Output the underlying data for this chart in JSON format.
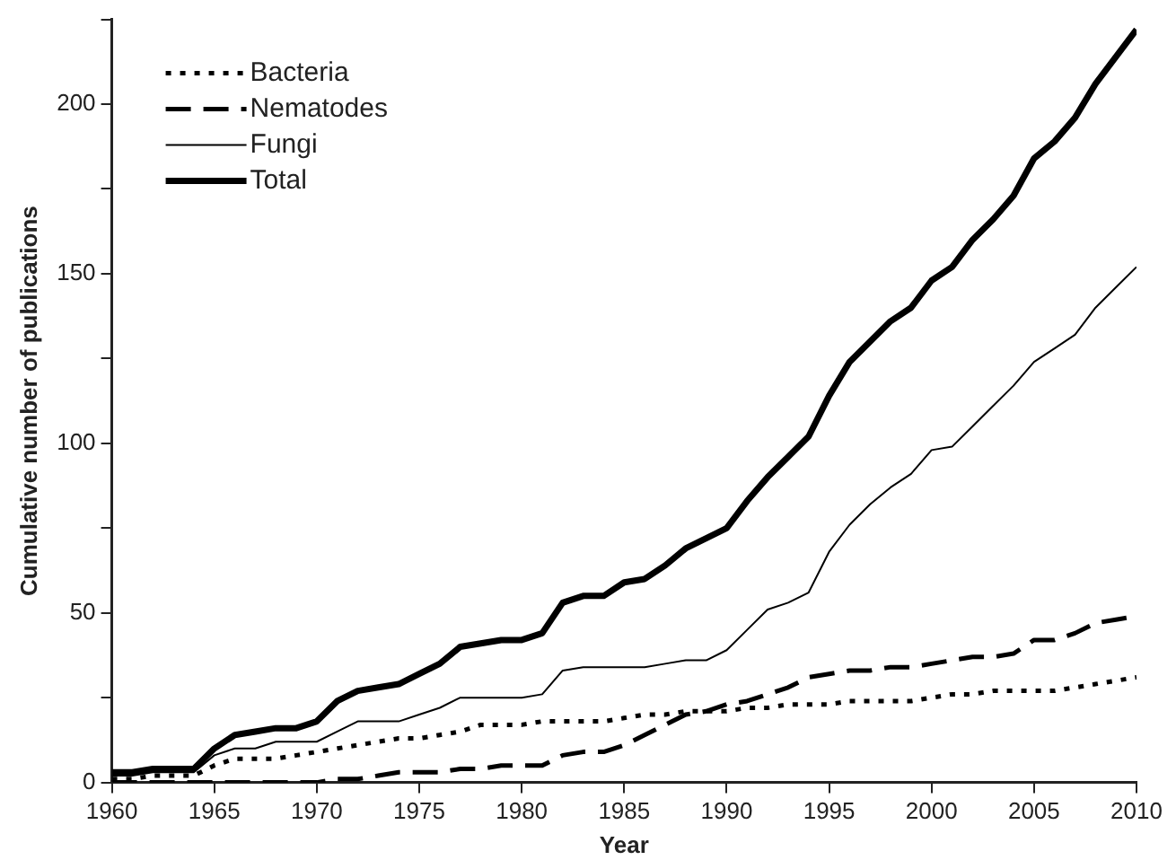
{
  "chart_data": {
    "type": "line",
    "xlabel": "Year",
    "ylabel": "Cumulative number of publications",
    "x": [
      1960,
      1961,
      1962,
      1963,
      1964,
      1965,
      1966,
      1967,
      1968,
      1969,
      1970,
      1971,
      1972,
      1973,
      1974,
      1975,
      1976,
      1977,
      1978,
      1979,
      1980,
      1981,
      1982,
      1983,
      1984,
      1985,
      1986,
      1987,
      1988,
      1989,
      1990,
      1991,
      1992,
      1993,
      1994,
      1995,
      1996,
      1997,
      1998,
      1999,
      2000,
      2001,
      2002,
      2003,
      2004,
      2005,
      2006,
      2007,
      2008,
      2009,
      2010
    ],
    "series": [
      {
        "name": "Bacteria",
        "color": "#000000",
        "line_style": "dotted",
        "values": [
          1,
          1,
          2,
          2,
          2,
          5,
          7,
          7,
          7,
          8,
          9,
          10,
          11,
          12,
          13,
          13,
          14,
          15,
          17,
          17,
          17,
          18,
          18,
          18,
          18,
          19,
          20,
          20,
          21,
          21,
          21,
          22,
          22,
          23,
          23,
          23,
          24,
          24,
          24,
          24,
          25,
          26,
          26,
          27,
          27,
          27,
          27,
          28,
          29,
          30,
          31
        ]
      },
      {
        "name": "Nematodes",
        "color": "#000000",
        "line_style": "dashed",
        "values": [
          0,
          0,
          0,
          0,
          0,
          0,
          0,
          0,
          0,
          0,
          0,
          1,
          1,
          2,
          3,
          3,
          3,
          4,
          4,
          5,
          5,
          5,
          8,
          9,
          9,
          11,
          14,
          17,
          20,
          21,
          23,
          24,
          26,
          28,
          31,
          32,
          33,
          33,
          34,
          34,
          35,
          36,
          37,
          37,
          38,
          42,
          42,
          44,
          47,
          48,
          49
        ]
      },
      {
        "name": "Fungi",
        "color": "#000000",
        "line_style": "solid",
        "values": [
          2,
          2,
          3,
          3,
          3,
          8,
          10,
          10,
          12,
          12,
          12,
          15,
          18,
          18,
          18,
          20,
          22,
          25,
          25,
          25,
          25,
          26,
          33,
          34,
          34,
          34,
          34,
          35,
          36,
          36,
          39,
          45,
          51,
          53,
          56,
          68,
          76,
          82,
          87,
          91,
          98,
          99,
          105,
          111,
          117,
          124,
          128,
          132,
          140,
          146,
          152
        ]
      },
      {
        "name": "Total",
        "color": "#000000",
        "line_style": "solid",
        "values": [
          3,
          3,
          4,
          4,
          4,
          10,
          14,
          15,
          16,
          16,
          18,
          24,
          27,
          28,
          29,
          32,
          35,
          40,
          41,
          42,
          42,
          44,
          53,
          55,
          55,
          59,
          60,
          64,
          69,
          72,
          75,
          83,
          90,
          96,
          102,
          114,
          124,
          130,
          136,
          140,
          148,
          152,
          160,
          166,
          173,
          184,
          189,
          196,
          206,
          214,
          222
        ]
      }
    ],
    "xlim": [
      1960,
      2010
    ],
    "xticks": [
      1960,
      1965,
      1970,
      1975,
      1980,
      1985,
      1990,
      1995,
      2000,
      2005,
      2010
    ],
    "ylim": [
      0,
      225
    ],
    "yticks": [
      0,
      {
        "value": 25,
        "label": null
      },
      50,
      {
        "value": 75,
        "label": null
      },
      100,
      {
        "value": 125,
        "label": null
      },
      150,
      {
        "value": 175,
        "label": null
      },
      200,
      {
        "value": 225,
        "label": null
      }
    ],
    "grid": false,
    "legend": "top left",
    "marker": "none"
  }
}
